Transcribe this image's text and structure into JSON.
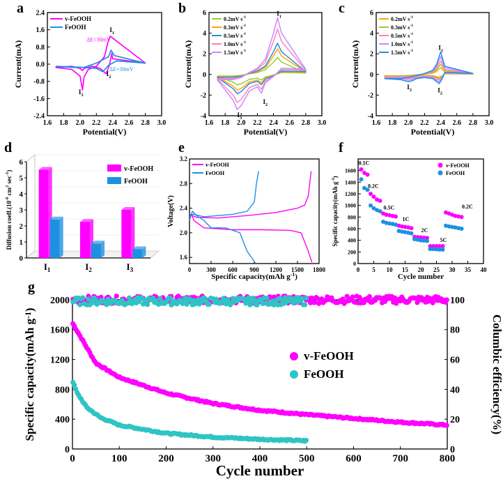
{
  "colors": {
    "magenta": "#ff00ff",
    "blue": "#1e90e0",
    "teal": "#2ec4c4",
    "green": "#99cc33",
    "orange": "#ffa500",
    "pink": "#ff80c0",
    "violet": "#cc88ff",
    "axis": "#000000"
  },
  "chart_data": [
    {
      "id": "a",
      "panel_letter": "a",
      "type": "line",
      "xlabel": "Potential(V)",
      "ylabel": "Current(mA)",
      "xlim": [
        1.6,
        3.0
      ],
      "ylim": [
        -2.4,
        2.4
      ],
      "xticks": [
        "1.6",
        "1.8",
        "2.0",
        "2.2",
        "2.4",
        "2.6",
        "2.8",
        "3.0"
      ],
      "yticks": [
        "-2.4",
        "-1.6",
        "-0.8",
        "0.0",
        "0.8",
        "1.6",
        "2.4"
      ],
      "series": [
        {
          "name": "v-FeOOH",
          "color": "#ff00ff",
          "x": [
            1.7,
            1.9,
            2.0,
            2.03,
            2.05,
            2.1,
            2.2,
            2.3,
            2.34,
            2.37,
            2.8,
            2.4,
            2.39,
            2.36,
            2.32,
            2.25,
            2.15,
            2.05,
            2.03,
            2.0,
            1.9,
            1.7
          ],
          "y": [
            -0.15,
            -0.25,
            -0.55,
            -1.2,
            -0.6,
            -0.25,
            -0.1,
            0.35,
            1.0,
            1.3,
            0.05,
            0.25,
            0.5,
            -0.05,
            -0.45,
            -0.2,
            -0.1,
            -0.2,
            -0.3,
            -0.2,
            -0.1,
            -0.15
          ]
        },
        {
          "name": "FeOOH",
          "color": "#1e90e0",
          "x": [
            1.7,
            1.9,
            2.05,
            2.2,
            2.35,
            2.38,
            2.42,
            2.8,
            2.45,
            2.35,
            2.28,
            2.2,
            2.05,
            1.7
          ],
          "y": [
            -0.1,
            -0.15,
            -0.15,
            0.05,
            0.35,
            0.65,
            0.4,
            0.05,
            0.15,
            -0.05,
            -0.35,
            -0.2,
            -0.15,
            -0.1
          ]
        }
      ],
      "annotations": [
        "I",
        "I",
        "I",
        "ΔE=30mV",
        "ΔE=39mV"
      ],
      "peak_subscripts": [
        "1",
        "2",
        "3"
      ]
    },
    {
      "id": "b",
      "panel_letter": "b",
      "type": "line",
      "xlabel": "Potential(V)",
      "ylabel": "Current(mA)",
      "xlim": [
        1.6,
        3.0
      ],
      "ylim": [
        -4,
        6
      ],
      "xticks": [
        "1.6",
        "1.8",
        "2.0",
        "2.2",
        "2.4",
        "2.6",
        "2.8",
        "3.0"
      ],
      "yticks": [
        "-4",
        "-2",
        "0",
        "2",
        "4",
        "6"
      ],
      "legend_unit": "mV s",
      "legend_exp": "-1",
      "series": [
        {
          "name": "0.2mV s-1",
          "label": "0.2",
          "color": "#99cc33",
          "scale": 0.3
        },
        {
          "name": "0.3mV s-1",
          "label": "0.3",
          "color": "#ffa500",
          "scale": 0.45
        },
        {
          "name": "0.5mV s-1",
          "label": "0.5",
          "color": "#1e90e0",
          "scale": 0.55
        },
        {
          "name": "1.0mV s-1",
          "label": "1.0",
          "color": "#ff80c0",
          "scale": 0.8
        },
        {
          "name": "1.5mV s-1",
          "label": "1.5",
          "color": "#cc88ff",
          "scale": 1.0
        }
      ],
      "shape": {
        "x": [
          1.7,
          1.9,
          2.0,
          2.1,
          2.2,
          2.3,
          2.4,
          2.45,
          2.5,
          2.8,
          2.5,
          2.45,
          2.4,
          2.3,
          2.25,
          2.2,
          2.1,
          2.0,
          1.95,
          1.9,
          1.8,
          1.7
        ],
        "y": [
          -0.5,
          -0.5,
          -0.3,
          0.2,
          0.6,
          1.5,
          4.0,
          5.5,
          4.0,
          0.5,
          0.6,
          0.2,
          -0.2,
          -0.8,
          -1.8,
          -1.2,
          -1.6,
          -3.0,
          -3.4,
          -2.5,
          -1.5,
          -0.5
        ]
      },
      "annotations": [
        "I",
        "I",
        "I"
      ],
      "peak_subscripts": [
        "1",
        "2",
        "3"
      ]
    },
    {
      "id": "c",
      "panel_letter": "c",
      "type": "line",
      "xlabel": "Potential(V)",
      "ylabel": "Current(mA)",
      "xlim": [
        1.6,
        3.0
      ],
      "ylim": [
        -4,
        6
      ],
      "xticks": [
        "1.6",
        "1.8",
        "2.0",
        "2.2",
        "2.4",
        "2.6",
        "2.8",
        "3.0"
      ],
      "yticks": [
        "-4",
        "-2",
        "0",
        "2",
        "4",
        "6"
      ],
      "legend_unit": "mV s",
      "legend_exp": "-1",
      "series": [
        {
          "name": "0.2mV s-1",
          "label": "0.2",
          "color": "#ffa500",
          "scale": 0.3
        },
        {
          "name": "0.3mV s-1",
          "label": "0.3",
          "color": "#99cc33",
          "scale": 0.45
        },
        {
          "name": "0.5mV s-1",
          "label": "0.5",
          "color": "#ff80c0",
          "scale": 0.6
        },
        {
          "name": "1.0mV s-1",
          "label": "1.0",
          "color": "#cc88ff",
          "scale": 0.8
        },
        {
          "name": "1.5mV s-1",
          "label": "1.5",
          "color": "#1e90e0",
          "scale": 1.0
        }
      ],
      "shape": {
        "x": [
          1.7,
          1.9,
          2.0,
          2.1,
          2.2,
          2.3,
          2.35,
          2.4,
          2.45,
          2.8,
          2.45,
          2.42,
          2.38,
          2.3,
          2.2,
          2.1,
          2.05,
          2.0,
          1.9,
          1.7
        ],
        "y": [
          -0.4,
          -0.4,
          -0.3,
          -0.1,
          0.1,
          0.4,
          1.0,
          2.2,
          0.8,
          0.1,
          0.2,
          -0.4,
          -0.9,
          -0.4,
          -0.3,
          -0.4,
          -0.6,
          -0.7,
          -0.5,
          -0.4
        ]
      },
      "annotations": [
        "I",
        "I",
        "I"
      ],
      "peak_subscripts": [
        "1",
        "2",
        "3"
      ]
    },
    {
      "id": "d",
      "panel_letter": "d",
      "type": "bar",
      "ylabel_main": "Diffusion coeff.(10",
      "ylabel_exp1": "-6",
      "ylabel_mid": " cm",
      "ylabel_exp2": "2",
      "ylabel_end": " sec",
      "ylabel_exp3": "-1",
      "ylabel_close": ")",
      "ylim": [
        0,
        6
      ],
      "yticks": [
        "0",
        "1",
        "2",
        "3",
        "4",
        "5",
        "6"
      ],
      "categories": [
        "I",
        "I",
        "I"
      ],
      "category_subscripts": [
        "1",
        "2",
        "3"
      ],
      "series": [
        {
          "name": "v-FeOOH",
          "color": "#ff00ff",
          "values": [
            5.5,
            2.25,
            3.0
          ]
        },
        {
          "name": "FeOOH",
          "color": "#1e90e0",
          "values": [
            2.4,
            0.9,
            0.55
          ]
        }
      ]
    },
    {
      "id": "e",
      "panel_letter": "e",
      "type": "line",
      "xlabel_main": "Specific capacity(mAh g",
      "xlabel_exp": "-1",
      "xlabel_close": ")",
      "ylabel": "Voltage(V)",
      "xlim": [
        0,
        1800
      ],
      "ylim": [
        1.5,
        3.2
      ],
      "xticks": [
        "0",
        "300",
        "600",
        "900",
        "1200",
        "1500",
        "1800"
      ],
      "yticks": [
        "1.6",
        "2.0",
        "2.4",
        "2.8",
        "3.2"
      ],
      "series": [
        {
          "name": "v-FeOOH",
          "color": "#ff00ff",
          "discharge": {
            "x": [
              0,
              30,
              60,
              200,
              600,
              1000,
              1400,
              1550,
              1650,
              1700
            ],
            "y": [
              2.25,
              2.3,
              2.2,
              2.08,
              2.05,
              2.05,
              2.04,
              2.0,
              1.7,
              1.52
            ]
          },
          "charge": {
            "x": [
              0,
              100,
              400,
              800,
              1200,
              1500,
              1600,
              1650,
              1690
            ],
            "y": [
              2.3,
              2.25,
              2.24,
              2.28,
              2.33,
              2.4,
              2.45,
              2.6,
              3.0
            ]
          }
        },
        {
          "name": "FeOOH",
          "color": "#1e90e0",
          "discharge": {
            "x": [
              0,
              40,
              100,
              200,
              300,
              500,
              700,
              800,
              920
            ],
            "y": [
              2.2,
              2.35,
              2.28,
              2.2,
              2.08,
              2.08,
              2.0,
              1.7,
              1.5
            ]
          },
          "charge": {
            "x": [
              0,
              60,
              200,
              400,
              600,
              800,
              900,
              930,
              960
            ],
            "y": [
              2.3,
              2.3,
              2.26,
              2.28,
              2.3,
              2.35,
              2.5,
              2.8,
              3.0
            ]
          }
        }
      ]
    },
    {
      "id": "f",
      "panel_letter": "f",
      "type": "scatter",
      "xlabel": "Cycle number",
      "ylabel_main": "Specific capacity(mAh g",
      "ylabel_exp": "-1",
      "ylabel_close": ")",
      "xlim": [
        0,
        40
      ],
      "ylim": [
        0,
        1800
      ],
      "xticks": [
        "0",
        "5",
        "10",
        "15",
        "20",
        "25",
        "30",
        "35",
        "40"
      ],
      "yticks": [
        "0",
        "200",
        "400",
        "600",
        "800",
        "1000",
        "1200",
        "1400",
        "1600"
      ],
      "series": [
        {
          "name": "v-FeOOH",
          "color": "#ff00ff",
          "y": [
            1620,
            1560,
            1530,
            1200,
            1150,
            1100,
            1080,
            860,
            840,
            830,
            820,
            810,
            650,
            640,
            630,
            620,
            610,
            460,
            455,
            450,
            445,
            440,
            300,
            300,
            300,
            300,
            300,
            880,
            860,
            840,
            820,
            810,
            800
          ]
        },
        {
          "name": "FeOOH",
          "color": "#1e90e0",
          "y": [
            1450,
            1300,
            1270,
            1000,
            950,
            920,
            900,
            720,
            700,
            690,
            680,
            670,
            560,
            550,
            540,
            530,
            520,
            420,
            410,
            400,
            395,
            390,
            250,
            250,
            245,
            240,
            240,
            650,
            640,
            630,
            620,
            610,
            600
          ]
        }
      ],
      "annotations": [
        "0.1C",
        "0.2C",
        "0.5C",
        "1C",
        "2C",
        "5C",
        "0.2C"
      ]
    },
    {
      "id": "g",
      "panel_letter": "g",
      "type": "scatter",
      "xlabel": "Cycle number",
      "ylabel_main": "Specific capacity(mAh g",
      "ylabel_exp": "-1",
      "ylabel_close": ")",
      "y2label": "Columbic efficiency(%)",
      "xlim": [
        0,
        800
      ],
      "ylim": [
        0,
        2000
      ],
      "y2lim": [
        0,
        100
      ],
      "xticks": [
        "0",
        "100",
        "200",
        "300",
        "400",
        "500",
        "600",
        "700",
        "800"
      ],
      "yticks": [
        "0",
        "400",
        "800",
        "1200",
        "1600",
        "2000"
      ],
      "y2ticks": [
        "0",
        "20",
        "40",
        "60",
        "80",
        "100"
      ],
      "series": [
        {
          "name": "v-FeOOH",
          "color": "#ff00ff",
          "cycles": 800,
          "capacity_curve": {
            "x": [
              1,
              50,
              100,
              200,
              300,
              400,
              500,
              600,
              700,
              800
            ],
            "y": [
              1680,
              1150,
              960,
              750,
              610,
              520,
              460,
              410,
              360,
              320
            ]
          },
          "efficiency": 100
        },
        {
          "name": "FeOOH",
          "color": "#2ec4c4",
          "cycles": 500,
          "capacity_curve": {
            "x": [
              1,
              10,
              30,
              60,
              100,
              200,
              300,
              400,
              500
            ],
            "y": [
              900,
              750,
              560,
              420,
              320,
              210,
              160,
              130,
              110
            ]
          },
          "efficiency": 99
        }
      ]
    }
  ]
}
